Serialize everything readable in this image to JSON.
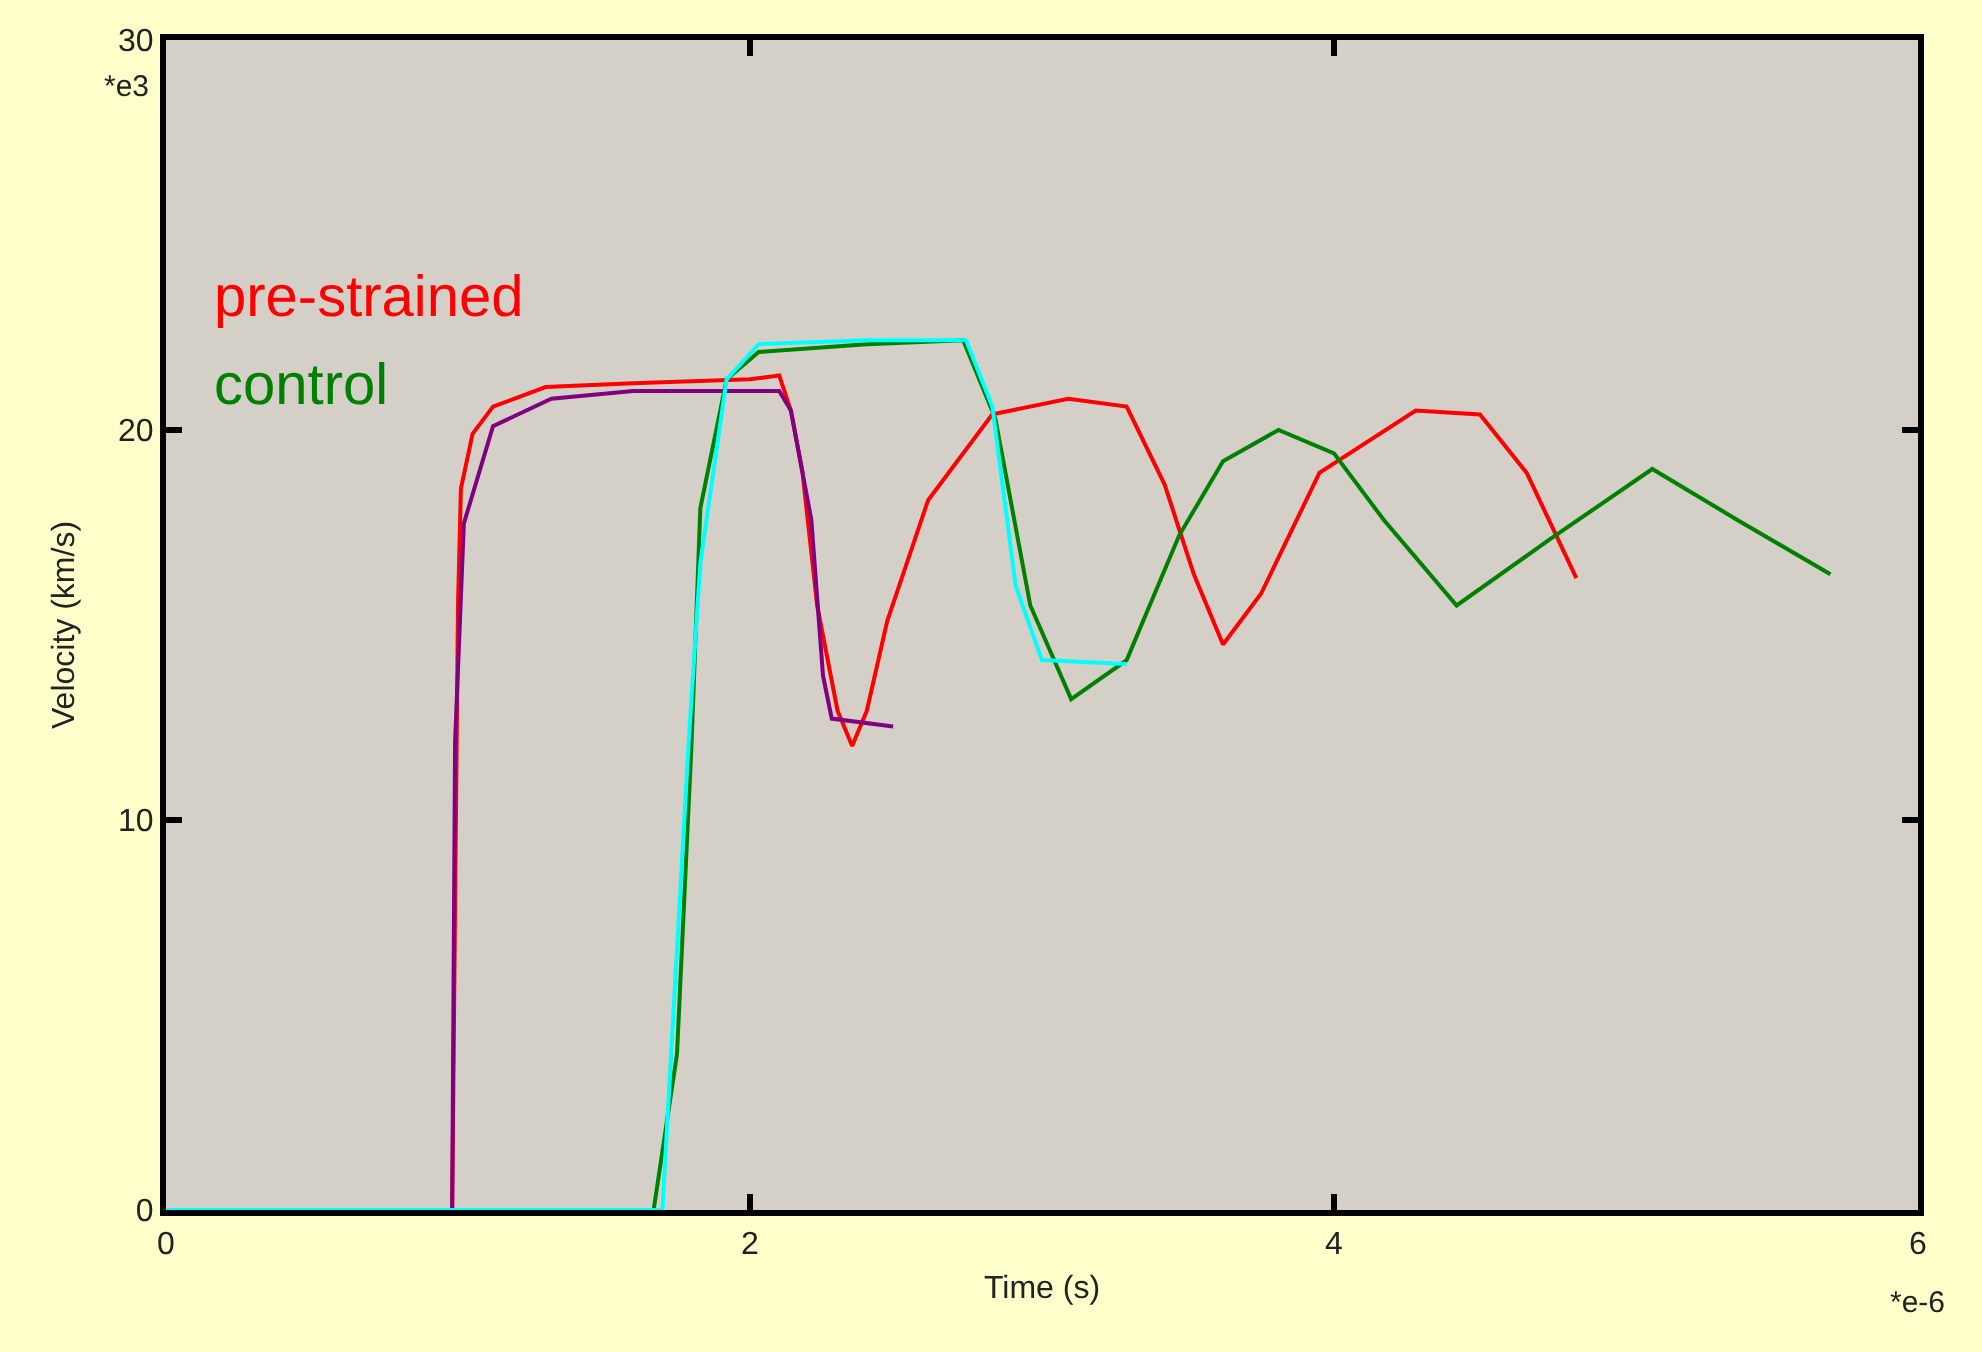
{
  "chart_data": {
    "type": "line",
    "xlabel": "Time (s)",
    "ylabel": "Velocity (km/s)",
    "xlim": [
      0,
      6
    ],
    "xticks": [
      0,
      2,
      4,
      6
    ],
    "ylim": [
      0,
      30
    ],
    "yticks": [
      0,
      10,
      20,
      30
    ],
    "grid": false,
    "legend": false,
    "marker": "none",
    "line_style": "solid",
    "annotations": [
      "*e3",
      "*e-6"
    ],
    "series": [
      {
        "name": "pre-strained",
        "color": "#ff0000",
        "x": [
          0,
          0.98,
          1.0,
          1.01,
          1.05,
          1.12,
          1.3,
          1.6,
          2.0,
          2.1,
          2.14,
          2.18,
          2.23,
          2.3,
          2.35,
          2.4,
          2.47,
          2.61,
          2.83,
          3.09,
          3.29,
          3.42,
          3.52,
          3.62,
          3.75,
          3.95,
          4.28,
          4.5,
          4.66,
          4.83
        ],
        "values": [
          0,
          0,
          15.5,
          18.5,
          19.9,
          20.6,
          21.1,
          21.2,
          21.3,
          21.4,
          20.5,
          18.9,
          15.5,
          12.8,
          11.9,
          12.8,
          15.1,
          18.2,
          20.4,
          20.8,
          20.6,
          18.6,
          16.3,
          14.5,
          15.8,
          18.9,
          20.5,
          20.4,
          18.9,
          16.2
        ]
      },
      {
        "color": "#800080",
        "x": [
          0,
          0.98,
          0.99,
          1.02,
          1.12,
          1.32,
          1.6,
          2.1,
          2.14,
          2.21,
          2.25,
          2.28,
          2.49
        ],
        "values": [
          0,
          0,
          12,
          17.6,
          20.1,
          20.8,
          21.0,
          21.0,
          20.5,
          17.7,
          13.7,
          12.6,
          12.4
        ]
      },
      {
        "name": "control",
        "color": "#008000",
        "x": [
          0,
          1.67,
          1.75,
          1.8,
          1.83,
          1.92,
          2.03,
          2.4,
          2.73,
          2.84,
          2.96,
          3.1,
          3.29,
          3.47,
          3.62,
          3.81,
          4.0,
          4.17,
          4.42,
          4.74,
          5.09,
          5.38,
          5.7
        ],
        "values": [
          0,
          0,
          4,
          12.0,
          18.0,
          21.3,
          22.0,
          22.2,
          22.3,
          20.3,
          15.5,
          13.1,
          14.1,
          17.3,
          19.2,
          20.0,
          19.4,
          17.7,
          15.5,
          17.2,
          19.0,
          17.7,
          16.3
        ]
      },
      {
        "color": "#00ffff",
        "x": [
          0,
          1.7,
          1.79,
          1.83,
          1.92,
          2.03,
          2.4,
          2.74,
          2.83,
          2.91,
          3.0,
          3.29
        ],
        "values": [
          0,
          0,
          12.0,
          16.6,
          21.3,
          22.2,
          22.3,
          22.3,
          20.6,
          16.0,
          14.1,
          14.0
        ]
      }
    ]
  }
}
